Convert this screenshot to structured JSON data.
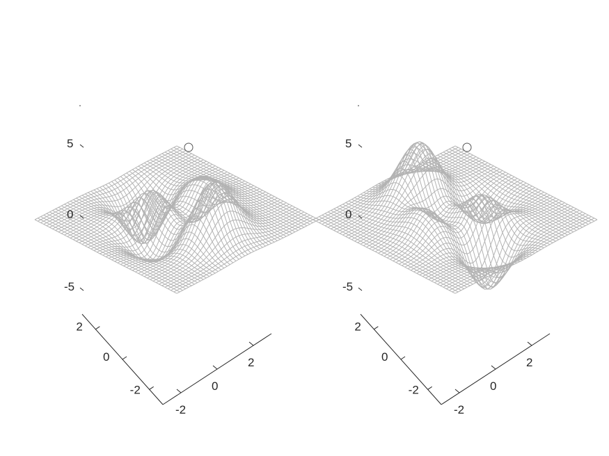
{
  "figure": {
    "background": "#ffffff",
    "mesh_color": "#b3b3b3",
    "axis_color": "#262626"
  },
  "chart_data": [
    {
      "type": "surface-mesh",
      "function": "peaks",
      "x_ticks": [
        "-2",
        "0",
        "2"
      ],
      "y_ticks": [
        "-2",
        "0",
        "2"
      ],
      "z_ticks": [
        "-5",
        "0",
        "5"
      ],
      "xlim": [
        -3,
        3
      ],
      "ylim": [
        -3,
        3
      ],
      "zlim": [
        -8,
        8
      ],
      "grid_points": 49,
      "marker": {
        "x": 3,
        "y": 3,
        "z": 4.6
      },
      "view": {
        "azimuth_deg": -45,
        "elevation_deg": 30
      }
    },
    {
      "type": "surface-mesh",
      "function": "peaks",
      "x_ticks": [
        "-2",
        "0",
        "2"
      ],
      "y_ticks": [
        "-2",
        "0",
        "2"
      ],
      "z_ticks": [
        "-5",
        "0",
        "5"
      ],
      "xlim": [
        -3,
        3
      ],
      "ylim": [
        -3,
        3
      ],
      "zlim": [
        -8,
        8
      ],
      "grid_points": 49,
      "marker": {
        "x": 3,
        "y": 3,
        "z": 4.6
      },
      "view": {
        "azimuth_deg": 135,
        "elevation_deg": 30
      }
    }
  ]
}
